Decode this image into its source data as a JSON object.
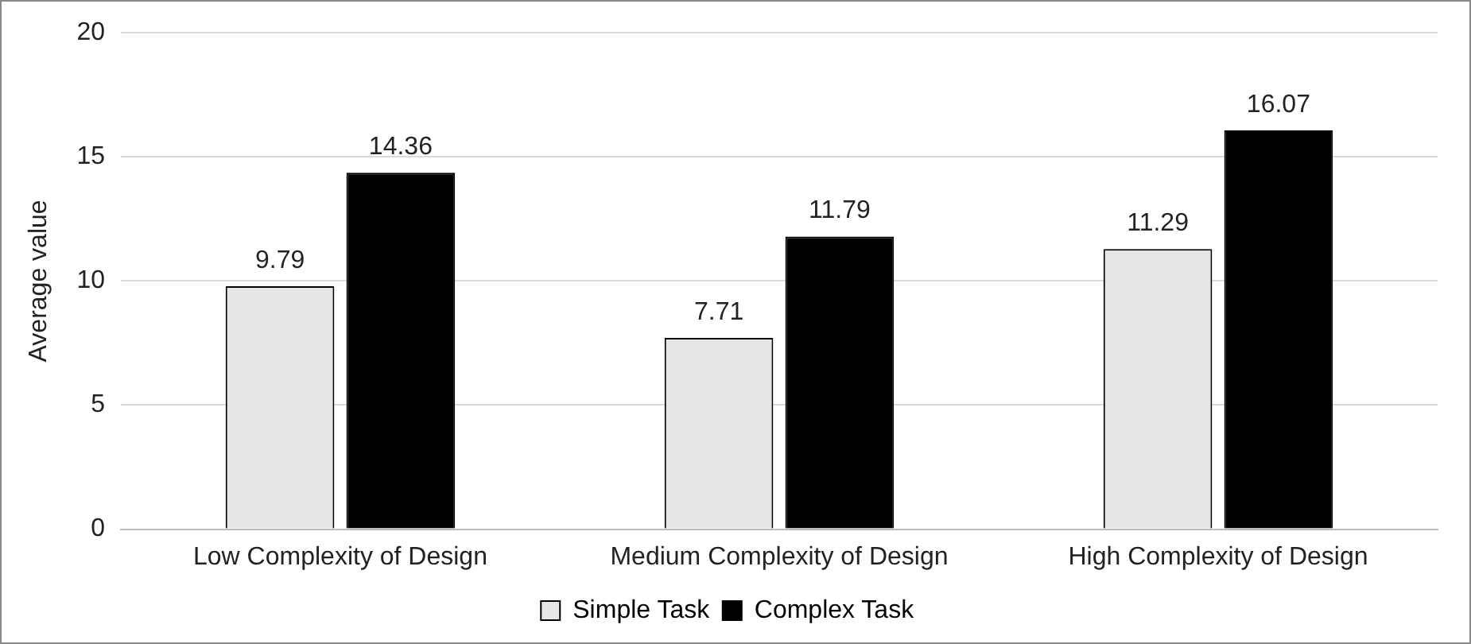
{
  "chart_data": {
    "type": "bar",
    "ylabel": "Average value",
    "categories": [
      "Low Complexity of Design",
      "Medium Complexity of Design",
      "High Complexity of Design"
    ],
    "series": [
      {
        "name": "Simple Task",
        "color": "#e6e6e6",
        "values": [
          9.79,
          7.71,
          11.29
        ]
      },
      {
        "name": "Complex Task",
        "color": "#000000",
        "values": [
          14.36,
          11.79,
          16.07
        ]
      }
    ],
    "ylim": [
      0,
      20
    ],
    "yticks": [
      0,
      5,
      10,
      15,
      20
    ],
    "grid": "y",
    "legend": "bottom",
    "data_labels": true
  }
}
